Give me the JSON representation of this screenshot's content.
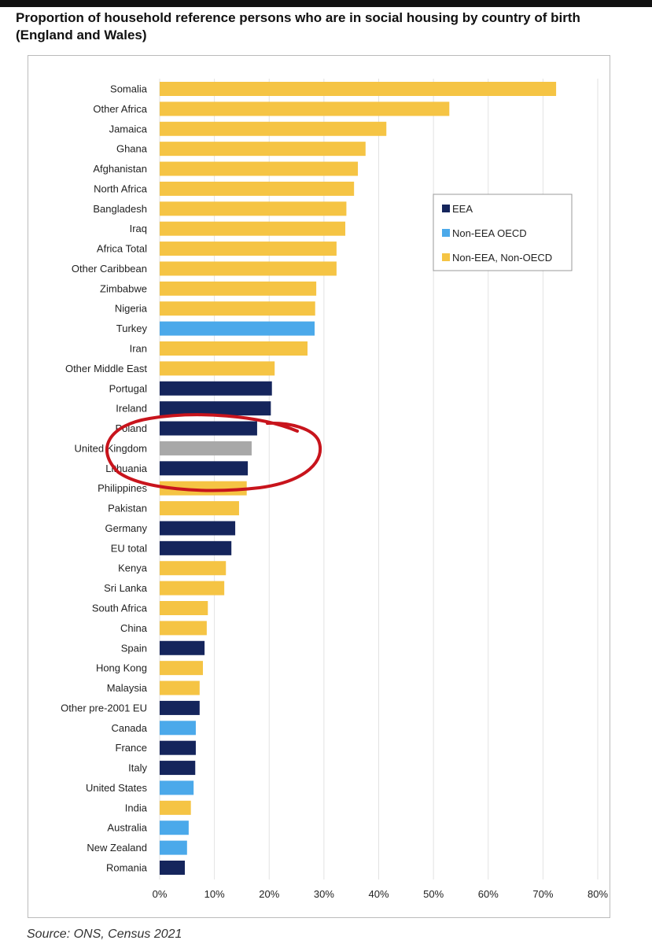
{
  "title": "Proportion of household reference persons who are in social housing by country of birth (England and Wales)",
  "source": "Source: ONS, Census 2021",
  "colors": {
    "EEA": "#15255c",
    "Non-EEA OECD": "#4ba9ea",
    "Non-EEA, Non-OECD": "#f5c444",
    "United Kingdom": "#a8a8a8",
    "annotation": "#c8141c"
  },
  "chart_data": {
    "type": "bar",
    "orientation": "horizontal",
    "title": "Proportion of household reference persons who are in social housing by country of birth (England and Wales)",
    "xlabel": "",
    "ylabel": "",
    "xlim": [
      0,
      80
    ],
    "xticks": [
      "0%",
      "10%",
      "20%",
      "30%",
      "40%",
      "50%",
      "60%",
      "70%",
      "80%"
    ],
    "grid": true,
    "legend_position": "right",
    "legend": [
      "EEA",
      "Non-EEA OECD",
      "Non-EEA, Non-OECD"
    ],
    "categories": [
      "Somalia",
      "Other Africa",
      "Jamaica",
      "Ghana",
      "Afghanistan",
      "North Africa",
      "Bangladesh",
      "Iraq",
      "Africa Total",
      "Other Caribbean",
      "Zimbabwe",
      "Nigeria",
      "Turkey",
      "Iran",
      "Other Middle East",
      "Portugal",
      "Ireland",
      "Poland",
      "United Kingdom",
      "Lithuania",
      "Philippines",
      "Pakistan",
      "Germany",
      "EU total",
      "Kenya",
      "Sri Lanka",
      "South Africa",
      "China",
      "Spain",
      "Hong Kong",
      "Malaysia",
      "Other pre-2001 EU",
      "Canada",
      "France",
      "Italy",
      "United States",
      "India",
      "Australia",
      "New Zealand",
      "Romania"
    ],
    "values": [
      72.4,
      52.9,
      41.4,
      37.6,
      36.2,
      35.5,
      34.1,
      33.9,
      32.3,
      32.3,
      28.6,
      28.4,
      28.3,
      27.0,
      21.0,
      20.5,
      20.3,
      17.8,
      16.8,
      16.1,
      15.9,
      14.5,
      13.8,
      13.1,
      12.1,
      11.8,
      8.8,
      8.6,
      8.2,
      7.9,
      7.3,
      7.3,
      6.6,
      6.6,
      6.5,
      6.2,
      5.7,
      5.3,
      5.0,
      4.6
    ],
    "groups": [
      "Non-EEA, Non-OECD",
      "Non-EEA, Non-OECD",
      "Non-EEA, Non-OECD",
      "Non-EEA, Non-OECD",
      "Non-EEA, Non-OECD",
      "Non-EEA, Non-OECD",
      "Non-EEA, Non-OECD",
      "Non-EEA, Non-OECD",
      "Non-EEA, Non-OECD",
      "Non-EEA, Non-OECD",
      "Non-EEA, Non-OECD",
      "Non-EEA, Non-OECD",
      "Non-EEA OECD",
      "Non-EEA, Non-OECD",
      "Non-EEA, Non-OECD",
      "EEA",
      "EEA",
      "EEA",
      "United Kingdom",
      "EEA",
      "Non-EEA, Non-OECD",
      "Non-EEA, Non-OECD",
      "EEA",
      "EEA",
      "Non-EEA, Non-OECD",
      "Non-EEA, Non-OECD",
      "Non-EEA, Non-OECD",
      "Non-EEA, Non-OECD",
      "EEA",
      "Non-EEA, Non-OECD",
      "Non-EEA, Non-OECD",
      "EEA",
      "Non-EEA OECD",
      "EEA",
      "EEA",
      "Non-EEA OECD",
      "Non-EEA, Non-OECD",
      "Non-EEA OECD",
      "Non-EEA OECD",
      "EEA"
    ]
  }
}
